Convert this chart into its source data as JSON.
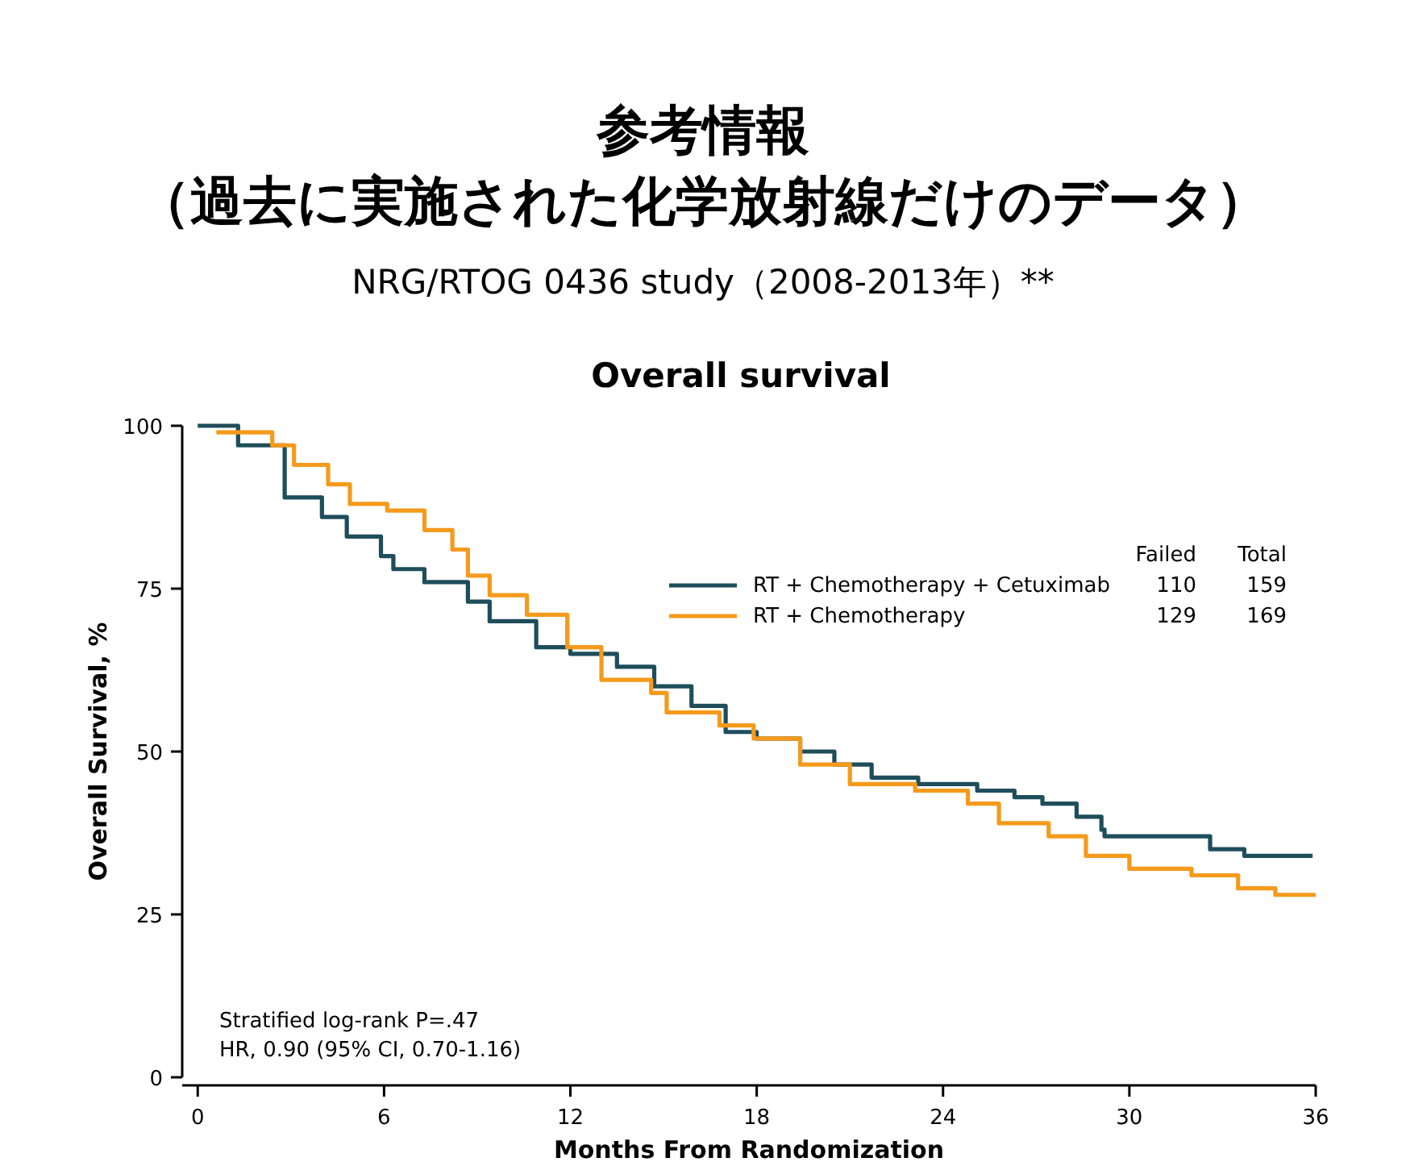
{
  "chart_data": {
    "type": "step",
    "title": "参考情報",
    "subtitle": "（過去に実施された化学放射線だけのデータ）",
    "xlabel": "Months From Randomization",
    "ylabel": "Overall Survival, %",
    "xlim": [
      -0.5,
      36
    ],
    "xticks": [
      0,
      6,
      12,
      18,
      24,
      30,
      36
    ],
    "ylim": [
      0,
      100
    ],
    "yticks": [
      0,
      25,
      50,
      75,
      100
    ],
    "grid": false,
    "legend": "top right",
    "series": [
      {
        "name": "RT + Chemotherapy + Cetuximab",
        "color": "#1e4d5b",
        "x": [
          0,
          1.3,
          2.8,
          4.0,
          4.8,
          5.9,
          6.3,
          7.3,
          8.7,
          9.4,
          10.9,
          12,
          13.5,
          14.7,
          15.9,
          17,
          18,
          19.4,
          20.5,
          21.7,
          23.2,
          25.1,
          26.3,
          27.2,
          28.3,
          29.1,
          29.2,
          32.6,
          33.1,
          33.7,
          35.9
        ],
        "values": [
          100,
          97,
          89,
          86,
          83,
          80,
          78,
          76,
          73,
          70,
          66,
          65,
          63,
          60,
          57,
          53,
          52,
          50,
          48,
          46,
          45,
          44,
          43,
          42,
          40,
          38,
          37,
          35,
          35,
          34,
          34
        ]
      },
      {
        "name": "RT + Chemotherapy",
        "color": "#f59a1b",
        "x": [
          0.6,
          2.4,
          3.1,
          4.2,
          4.9,
          6.1,
          7.3,
          8.2,
          8.7,
          9.4,
          10.6,
          11.9,
          13,
          14.6,
          15.1,
          16.8,
          17.9,
          19.4,
          21,
          23.1,
          24.8,
          25.8,
          27.4,
          28.6,
          30,
          32,
          33.5,
          34.7,
          36
        ],
        "values": [
          99,
          97,
          94,
          91,
          88,
          87,
          84,
          81,
          77,
          74,
          71,
          66,
          61,
          59,
          56,
          54,
          52,
          48,
          45,
          44,
          42,
          39,
          37,
          34,
          32,
          31,
          29,
          28,
          28
        ]
      }
    ],
    "annotations": [
      "NRG/RTOG 0436 study（2008-2013年）**",
      "Overall survival",
      "Failed",
      "Total",
      "110",
      "159",
      "129",
      "169",
      "Stratified log-rank P=.47",
      "HR, 0.90 (95% CI, 0.70-1.16)"
    ]
  }
}
